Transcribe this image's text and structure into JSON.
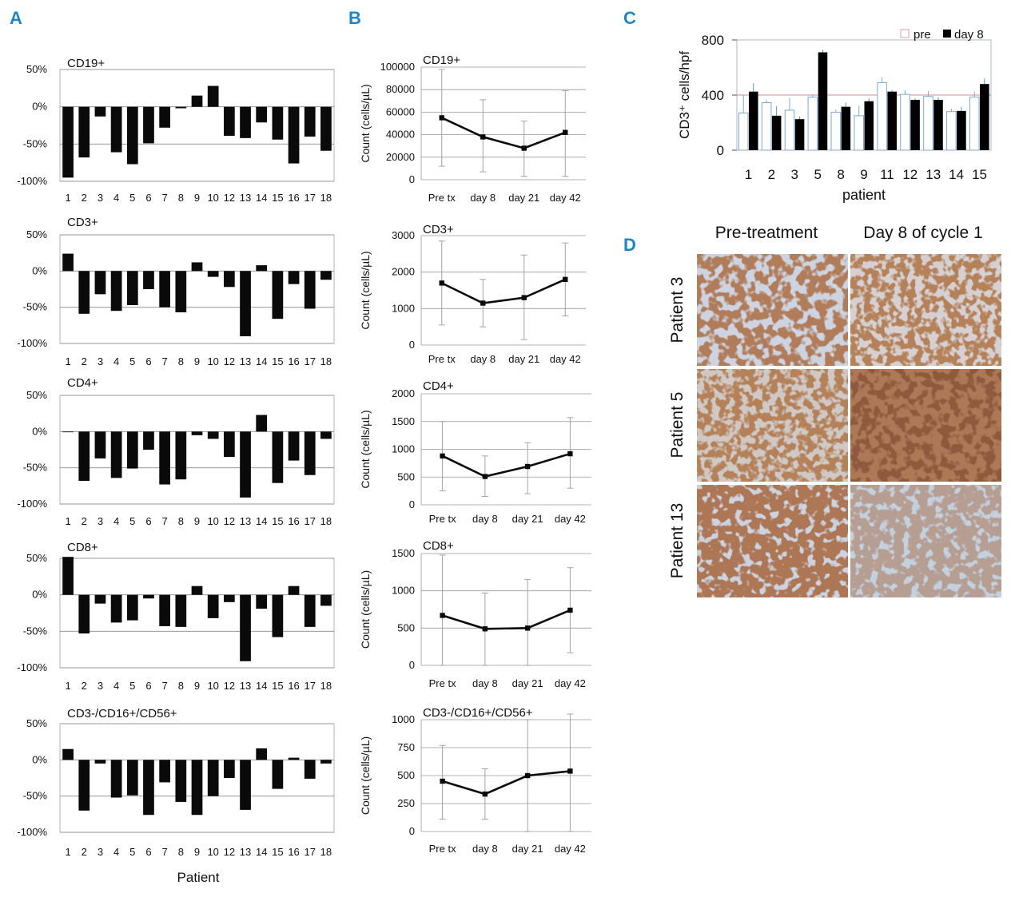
{
  "panels": {
    "a": "A",
    "b": "B",
    "c": "C",
    "d": "D"
  },
  "panel_a_xlabel": "Patient",
  "chart_data": [
    {
      "id": "a-cd19",
      "panel": "A",
      "type": "bar",
      "title": "CD19+",
      "categories": [
        "1",
        "2",
        "3",
        "4",
        "5",
        "6",
        "7",
        "8",
        "9",
        "10",
        "12",
        "13",
        "14",
        "15",
        "16",
        "17",
        "18"
      ],
      "values": [
        -95,
        -68,
        -13,
        -61,
        -77,
        -49,
        -28,
        -2,
        15,
        28,
        -39,
        -42,
        -21,
        -44,
        -76,
        -40,
        -59
      ],
      "yticks": [
        "50%",
        "0%",
        "-50%",
        "-100%"
      ],
      "ylim": [
        -100,
        50
      ],
      "grid": true
    },
    {
      "id": "a-cd3",
      "panel": "A",
      "type": "bar",
      "title": "CD3+",
      "categories": [
        "1",
        "2",
        "3",
        "4",
        "5",
        "6",
        "7",
        "8",
        "9",
        "10",
        "12",
        "13",
        "14",
        "15",
        "16",
        "17",
        "18"
      ],
      "values": [
        24,
        -59,
        -32,
        -55,
        -47,
        -25,
        -50,
        -57,
        12,
        -8,
        -22,
        -90,
        8,
        -66,
        -18,
        -52,
        -12
      ],
      "yticks": [
        "50%",
        "0%",
        "-50%",
        "-100%"
      ],
      "ylim": [
        -100,
        50
      ],
      "grid": true
    },
    {
      "id": "a-cd4",
      "panel": "A",
      "type": "bar",
      "title": "CD4+",
      "categories": [
        "1",
        "2",
        "3",
        "4",
        "5",
        "6",
        "7",
        "8",
        "9",
        "10",
        "12",
        "13",
        "14",
        "15",
        "16",
        "17",
        "18"
      ],
      "values": [
        0,
        -68,
        -37,
        -64,
        -51,
        -25,
        -73,
        -66,
        -5,
        -10,
        -35,
        -91,
        23,
        -71,
        -40,
        -60,
        -10
      ],
      "yticks": [
        "50%",
        "0%",
        "-50%",
        "-100%"
      ],
      "ylim": [
        -100,
        50
      ],
      "grid": true
    },
    {
      "id": "a-cd8",
      "panel": "A",
      "type": "bar",
      "title": "CD8+",
      "categories": [
        "1",
        "2",
        "3",
        "4",
        "5",
        "6",
        "7",
        "8",
        "9",
        "10",
        "12",
        "13",
        "14",
        "15",
        "16",
        "17",
        "18"
      ],
      "values": [
        52,
        -53,
        -12,
        -38,
        -35,
        -5,
        -43,
        -44,
        12,
        -32,
        -10,
        -91,
        -19,
        -58,
        12,
        -44,
        -15
      ],
      "yticks": [
        "50%",
        "0%",
        "-50%",
        "-100%"
      ],
      "ylim": [
        -100,
        50
      ],
      "grid": true
    },
    {
      "id": "a-nk",
      "panel": "A",
      "type": "bar",
      "title": "CD3-/CD16+/CD56+",
      "categories": [
        "1",
        "2",
        "3",
        "4",
        "5",
        "6",
        "7",
        "8",
        "9",
        "10",
        "12",
        "13",
        "14",
        "15",
        "16",
        "17",
        "18"
      ],
      "values": [
        15,
        -70,
        -5,
        -52,
        -49,
        -76,
        -31,
        -58,
        -76,
        -50,
        -25,
        -69,
        16,
        -40,
        3,
        -26,
        -5
      ],
      "yticks": [
        "50%",
        "0%",
        "-50%",
        "-100%"
      ],
      "ylim": [
        -100,
        50
      ],
      "grid": true
    },
    {
      "id": "b-cd19",
      "panel": "B",
      "type": "line",
      "title": "CD19+",
      "ylabel": "Count (cells/µL)",
      "x": [
        "Pre tx",
        "day 8",
        "day 21",
        "day 42"
      ],
      "values": [
        55000,
        38000,
        28000,
        42000
      ],
      "err_low": [
        12000,
        7000,
        3000,
        3000
      ],
      "err_high": [
        98000,
        71000,
        52000,
        79000
      ],
      "yticks": [
        "0",
        "20000",
        "40000",
        "60000",
        "80000",
        "100000"
      ],
      "ylim": [
        0,
        100000
      ]
    },
    {
      "id": "b-cd3",
      "panel": "B",
      "type": "line",
      "title": "CD3+",
      "ylabel": "Count (cells/µL)",
      "x": [
        "Pre tx",
        "day 8",
        "day 21",
        "day 42"
      ],
      "values": [
        1700,
        1150,
        1300,
        1800
      ],
      "err_low": [
        550,
        500,
        150,
        800
      ],
      "err_high": [
        2850,
        1800,
        2470,
        2800
      ],
      "yticks": [
        "0",
        "1000",
        "2000",
        "3000"
      ],
      "ylim": [
        0,
        3000
      ]
    },
    {
      "id": "b-cd4",
      "panel": "B",
      "type": "line",
      "title": "CD4+",
      "ylabel": "Count (cells/µL)",
      "x": [
        "Pre tx",
        "day 8",
        "day 21",
        "day 42"
      ],
      "values": [
        880,
        510,
        690,
        920
      ],
      "err_low": [
        250,
        150,
        200,
        300
      ],
      "err_high": [
        1500,
        880,
        1120,
        1570
      ],
      "yticks": [
        "0",
        "500",
        "1000",
        "1500",
        "2000"
      ],
      "ylim": [
        0,
        2000
      ]
    },
    {
      "id": "b-cd8",
      "panel": "B",
      "type": "line",
      "title": "CD8+",
      "ylabel": "Count (cells/µL)",
      "x": [
        "Pre tx",
        "day 8",
        "day 21",
        "day 42"
      ],
      "values": [
        670,
        490,
        500,
        740
      ],
      "err_low": [
        0,
        0,
        0,
        170
      ],
      "err_high": [
        1480,
        970,
        1150,
        1310
      ],
      "yticks": [
        "0",
        "500",
        "1000",
        "1500"
      ],
      "ylim": [
        0,
        1500
      ]
    },
    {
      "id": "b-nk",
      "panel": "B",
      "type": "line",
      "title": "CD3-/CD16+/CD56+",
      "ylabel": "Count (cells/µL)",
      "x": [
        "Pre tx",
        "day 8",
        "day 21",
        "day 42"
      ],
      "values": [
        450,
        335,
        500,
        540
      ],
      "err_low": [
        110,
        110,
        0,
        0
      ],
      "err_high": [
        770,
        560,
        1000,
        1050
      ],
      "yticks": [
        "0",
        "250",
        "500",
        "750",
        "1000"
      ],
      "ylim": [
        0,
        1000
      ]
    },
    {
      "id": "c-cd3",
      "panel": "C",
      "type": "bar",
      "title": "",
      "xlabel": "patient",
      "ylabel": "CD3⁺ cells/hpf",
      "categories": [
        "1",
        "2",
        "3",
        "5",
        "8",
        "9",
        "11",
        "12",
        "13",
        "14",
        "15"
      ],
      "series": [
        {
          "name": "pre",
          "values": [
            270,
            345,
            290,
            385,
            275,
            250,
            490,
            405,
            390,
            280,
            385
          ],
          "err": [
            130,
            20,
            90,
            20,
            20,
            70,
            40,
            30,
            40,
            20,
            40
          ]
        },
        {
          "name": "day 8",
          "values": [
            425,
            250,
            225,
            710,
            315,
            355,
            425,
            365,
            365,
            285,
            480
          ],
          "err": [
            60,
            70,
            20,
            20,
            30,
            20,
            10,
            10,
            20,
            30,
            40
          ]
        }
      ],
      "reference_line": 400,
      "yticks": [
        "0",
        "400",
        "800"
      ],
      "ylim": [
        0,
        800
      ]
    }
  ],
  "panel_d": {
    "col_headers": [
      "Pre-treatment",
      "Day 8 of cycle 1"
    ],
    "row_labels": [
      "Patient 3",
      "Patient 5",
      "Patient 13"
    ]
  }
}
